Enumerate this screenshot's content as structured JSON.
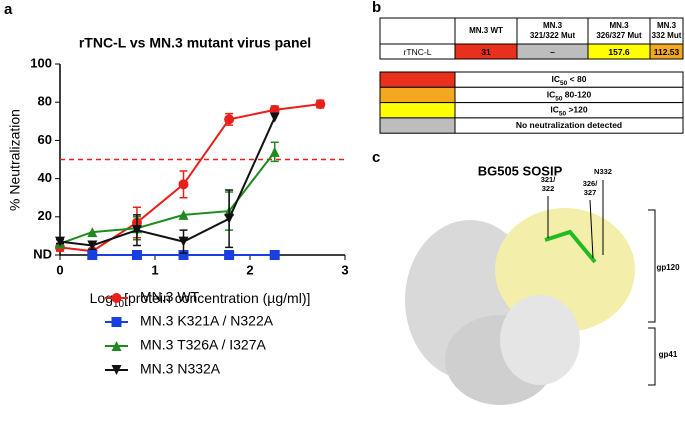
{
  "panel_labels": [
    "a",
    "b",
    "c"
  ],
  "chart_data": {
    "type": "line",
    "title": "rTNC-L vs MN.3 mutant virus panel",
    "y_label": "% Neutralization",
    "x_label": [
      "Log",
      "10",
      "[protein concentration (µg/ml)]"
    ],
    "xlim": [
      0,
      3
    ],
    "xticks": [
      0,
      1,
      2,
      3
    ],
    "ylim": [
      0,
      100
    ],
    "yticks": [
      {
        "value": 0,
        "label": "ND"
      },
      20,
      40,
      60,
      80,
      100
    ],
    "threshold": 50,
    "threshold_color": "#e8201c",
    "series": [
      {
        "name": "MN.3 WT",
        "color": "#e8201c",
        "marker": "circle",
        "x": [
          0,
          0.34,
          0.81,
          1.3,
          1.78,
          2.26,
          2.74
        ],
        "values": [
          4,
          2,
          17,
          37,
          71,
          76,
          79
        ],
        "errors": [
          2,
          1,
          8,
          7,
          3,
          2,
          2
        ]
      },
      {
        "name": "MN.3 K321A / N322A",
        "color": "#1a3fe0",
        "marker": "square",
        "x": [
          0.34,
          0.81,
          1.3,
          1.78,
          2.26
        ],
        "values": [
          0,
          0,
          0,
          0,
          0
        ],
        "errors": [
          0,
          0,
          0,
          0,
          0
        ]
      },
      {
        "name": "MN.3 T326A / I327A",
        "color": "#1f8a1f",
        "marker": "triangle-up",
        "x": [
          0,
          0.34,
          0.81,
          1.3,
          1.78,
          2.26
        ],
        "values": [
          6,
          12,
          14,
          21,
          23,
          54
        ],
        "errors": [
          0,
          0,
          6,
          0,
          10,
          5
        ]
      },
      {
        "name": "MN.3 N332A",
        "color": "#111111",
        "marker": "triangle-down",
        "x": [
          0,
          0.34,
          0.81,
          1.3,
          1.78,
          2.26
        ],
        "values": [
          7,
          5,
          13,
          7,
          19,
          72
        ],
        "errors": [
          1,
          2,
          8,
          6,
          15,
          0
        ]
      }
    ]
  },
  "table": {
    "columns": [
      [
        "MN.3 WT"
      ],
      [
        "MN.3",
        "321/322 Mut"
      ],
      [
        "MN.3",
        "326/327 Mut"
      ],
      [
        "MN.3",
        "332 Mut"
      ]
    ],
    "row_label": "rTNC-L",
    "cells": [
      "31",
      "–",
      "157.6",
      "112.53"
    ],
    "cell_colors": [
      "#e8301c",
      "#bdbdbd",
      "#ffff00",
      "#f5a81f"
    ]
  },
  "legend_table": [
    {
      "color": "#e8301c",
      "parts": [
        "IC",
        "50",
        " < 80"
      ]
    },
    {
      "color": "#f5a81f",
      "parts": [
        "IC",
        "50",
        " 80-120"
      ]
    },
    {
      "color": "#ffff00",
      "parts": [
        "IC",
        "50",
        " >120"
      ]
    },
    {
      "color": "#bdbdbd",
      "parts": [
        "No neutralization detected"
      ]
    }
  ],
  "structure": {
    "title": "BG505 SOSIP",
    "site_labels": [
      [
        "321/",
        "322"
      ],
      [
        "326/",
        "327"
      ],
      [
        "N332"
      ]
    ],
    "domain_labels": [
      "gp120",
      "gp41"
    ]
  }
}
